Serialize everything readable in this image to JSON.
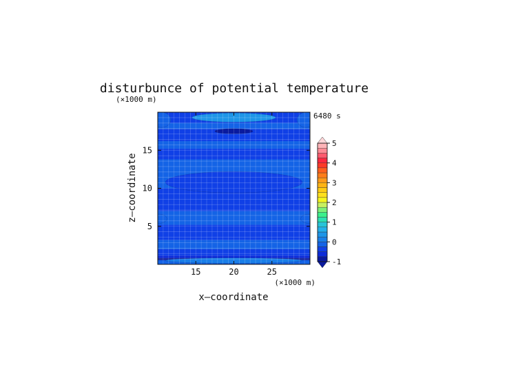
{
  "chart_data": {
    "type": "heatmap",
    "title": "disturbunce of potential temperature",
    "time_label": "6480 s",
    "xlabel": "x—coordinate",
    "ylabel": "z—coordinate",
    "x_unit": "(×1000 m)",
    "y_unit": "(×1000 m)",
    "xlim": [
      10,
      30
    ],
    "ylim": [
      0,
      20
    ],
    "x_ticks": [
      15,
      20,
      25
    ],
    "y_ticks": [
      5,
      10,
      15
    ],
    "grid": true,
    "colorbar": {
      "ticks": [
        "-1",
        "0",
        "1",
        "2",
        "3",
        "4",
        "5"
      ],
      "levels": [
        -1.0,
        -0.75,
        -0.5,
        -0.25,
        0.0,
        0.25,
        0.5,
        0.75,
        1.0,
        1.25,
        1.5,
        1.75,
        2.0,
        2.25,
        2.5,
        2.75,
        3.0,
        3.25,
        3.5,
        3.75,
        4.0,
        4.25,
        4.5,
        4.75,
        5.0
      ],
      "colors": [
        "#0a1a9e",
        "#0d2bd9",
        "#1040e6",
        "#1463e6",
        "#1a7fe8",
        "#1e96e8",
        "#25b0ea",
        "#28c4d8",
        "#2ee0b2",
        "#3cf08c",
        "#7df07a",
        "#c8f060",
        "#f4f41e",
        "#ffe01c",
        "#ffcc14",
        "#ffb414",
        "#ff9a1a",
        "#ff7d1a",
        "#ff601e",
        "#ff3a28",
        "#ff2840",
        "#ff5a6e",
        "#ff8c96",
        "#ffb4b8"
      ]
    },
    "bands": [
      {
        "y0": 0.0,
        "y1": 0.55,
        "value": -0.15
      },
      {
        "y0": 0.55,
        "y1": 0.85,
        "value": -0.95
      },
      {
        "y0": 0.85,
        "y1": 1.15,
        "value": -0.7
      },
      {
        "y0": 1.15,
        "y1": 2.0,
        "value": -0.35
      },
      {
        "y0": 2.0,
        "y1": 3.2,
        "value": -0.12
      },
      {
        "y0": 3.2,
        "y1": 5.2,
        "value": -0.28
      },
      {
        "y0": 5.2,
        "y1": 7.0,
        "value": -0.15
      },
      {
        "y0": 7.0,
        "y1": 10.0,
        "value": -0.38
      },
      {
        "y0": 10.0,
        "y1": 13.8,
        "value": -0.2
      },
      {
        "y0": 13.8,
        "y1": 15.2,
        "value": -0.32
      },
      {
        "y0": 15.2,
        "y1": 16.2,
        "value": -0.18
      },
      {
        "y0": 16.2,
        "y1": 17.8,
        "value": -0.3
      },
      {
        "y0": 17.8,
        "y1": 18.6,
        "value": -0.12
      },
      {
        "y0": 18.6,
        "y1": 20.0,
        "value": -0.3
      }
    ],
    "features": [
      {
        "cx": 20,
        "cy": 19.3,
        "rx": 5.5,
        "ry": 0.6,
        "value": 0.35
      },
      {
        "cx": 20,
        "cy": 17.5,
        "rx": 2.5,
        "ry": 0.35,
        "value": -0.8
      },
      {
        "cx": 20,
        "cy": 10.8,
        "rx": 9.0,
        "ry": 1.4,
        "value": -0.3
      },
      {
        "cx": 20,
        "cy": 0.5,
        "rx": 9.0,
        "ry": 0.35,
        "value": 0.1
      },
      {
        "cx": 10.5,
        "cy": 19.0,
        "rx": 1.2,
        "ry": 1.0,
        "value": -0.05
      },
      {
        "cx": 29.5,
        "cy": 19.0,
        "rx": 1.2,
        "ry": 1.0,
        "value": -0.05
      },
      {
        "cx": 29.8,
        "cy": 6.0,
        "rx": 1.0,
        "ry": 0.6,
        "value": -0.08
      },
      {
        "cx": 10.2,
        "cy": 6.0,
        "rx": 1.0,
        "ry": 0.6,
        "value": -0.08
      }
    ]
  }
}
